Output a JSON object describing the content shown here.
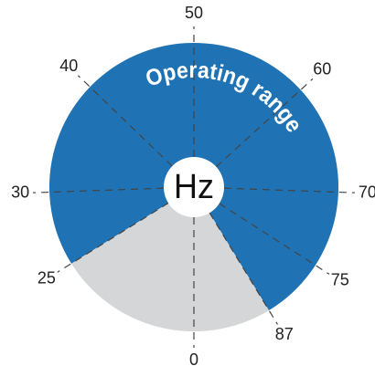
{
  "center_label": "Hz",
  "arc_label": "Operating range",
  "ticks": [
    0,
    25,
    30,
    40,
    50,
    60,
    70,
    75,
    87
  ]
}
